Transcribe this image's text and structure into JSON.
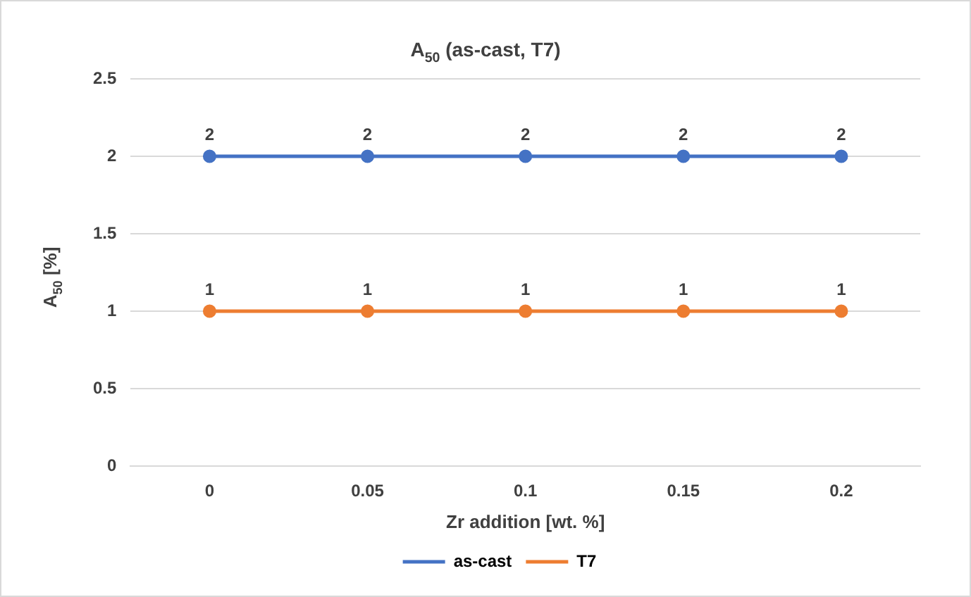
{
  "chart_data": {
    "type": "line",
    "title": "A$_{50}$ (as-cast, T7)",
    "xlabel": "Zr addition [wt. %]",
    "ylabel": "A$_{50}$ [%]",
    "categories": [
      "0",
      "0.05",
      "0.1",
      "0.15",
      "0.2"
    ],
    "series": [
      {
        "name": "as-cast",
        "color": "#4472c4",
        "values": [
          2,
          2,
          2,
          2,
          2
        ]
      },
      {
        "name": "T7",
        "color": "#ed7d31",
        "values": [
          1,
          1,
          1,
          1,
          1
        ]
      }
    ],
    "ylim": [
      0,
      2.5
    ],
    "yticks": [
      0,
      0.5,
      1,
      1.5,
      2,
      2.5
    ],
    "grid": "y",
    "legend": "bottom",
    "marker": "circle",
    "line_style": "solid",
    "data_labels": true
  }
}
